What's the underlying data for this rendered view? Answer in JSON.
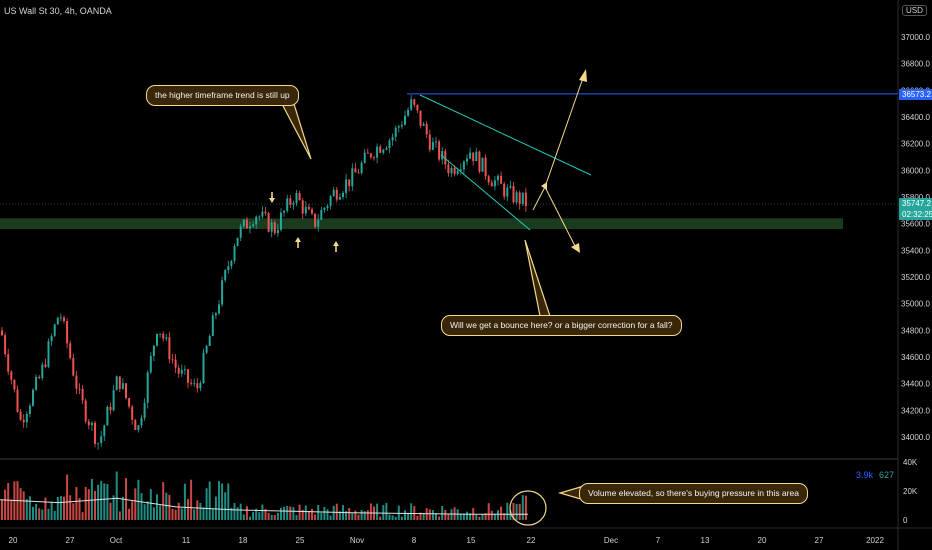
{
  "header": {
    "symbol_line": "US Wall St 30, 4h, OANDA",
    "currency": "USD"
  },
  "price_labels": {
    "resistance": "36573.2",
    "current": "35747.2",
    "countdown": "02:32:25"
  },
  "volume_legend": {
    "value_a": "3.9k",
    "value_b": "627"
  },
  "annotations": {
    "trend_note": "the higher timeframe trend is still up",
    "question_note": "Will we get a bounce here? or a bigger correction for a fall?",
    "volume_note": "Volume elevated, so there's buying pressure in this area"
  },
  "colors": {
    "background": "#000000",
    "bull": "#26a69a",
    "bear": "#ef5350",
    "resistance_line": "#2962ff",
    "channel": "#26c6b5",
    "support_zone": "#1b3b1f",
    "arrows": "#f5d98a",
    "grid_text": "#d1d4dc"
  },
  "chart_data": {
    "type": "candlestick",
    "y_axis": {
      "ylim": [
        33850,
        37220
      ],
      "tick_labels": [
        "37000.0",
        "36800.0",
        "36600.0",
        "36400.0",
        "36200.0",
        "36000.0",
        "35800.0",
        "35600.0",
        "35400.0",
        "35200.0",
        "35000.0",
        "34800.0",
        "34600.0",
        "34400.0",
        "34200.0",
        "34000.0"
      ],
      "tick_values": [
        37000,
        36800,
        36600,
        36400,
        36200,
        36000,
        35800,
        35600,
        35400,
        35200,
        35000,
        34800,
        34600,
        34400,
        34200,
        34000
      ]
    },
    "x_axis": {
      "tick_labels": [
        "20",
        "27",
        "Oct",
        "11",
        "18",
        "25",
        "Nov",
        "8",
        "15",
        "22",
        "Dec",
        "7",
        "13",
        "20",
        "27",
        "2022"
      ],
      "grid": false
    },
    "volume_axis": {
      "tick_labels": [
        "40K",
        "20K",
        "0"
      ],
      "tick_values": [
        40000,
        20000,
        0
      ]
    },
    "price_path": [
      {
        "x": "20",
        "y": 34800
      },
      {
        "x": "22",
        "y": 34120
      },
      {
        "x": "24",
        "y": 34450
      },
      {
        "x": "27",
        "y": 34950
      },
      {
        "x": "29",
        "y": 34300
      },
      {
        "x": "Oct",
        "y": 33950
      },
      {
        "x": "4",
        "y": 34450
      },
      {
        "x": "6",
        "y": 34050
      },
      {
        "x": "8",
        "y": 34850
      },
      {
        "x": "11",
        "y": 34500
      },
      {
        "x": "13",
        "y": 34350
      },
      {
        "x": "15",
        "y": 34950
      },
      {
        "x": "18",
        "y": 35500
      },
      {
        "x": "20",
        "y": 35680
      },
      {
        "x": "22",
        "y": 35560
      },
      {
        "x": "25",
        "y": 35820
      },
      {
        "x": "27",
        "y": 35600
      },
      {
        "x": "29",
        "y": 35830
      },
      {
        "x": "Nov",
        "y": 35950
      },
      {
        "x": "3",
        "y": 36150
      },
      {
        "x": "5",
        "y": 36250
      },
      {
        "x": "8",
        "y": 36500
      },
      {
        "x": "10",
        "y": 36200
      },
      {
        "x": "12",
        "y": 36000
      },
      {
        "x": "15",
        "y": 36150
      },
      {
        "x": "17",
        "y": 35950
      },
      {
        "x": "19",
        "y": 35820
      },
      {
        "x": "22",
        "y": 35747
      }
    ],
    "volume_path": [
      {
        "x": "20",
        "y": 14000
      },
      {
        "x": "27",
        "y": 12000
      },
      {
        "x": "Oct",
        "y": 15000
      },
      {
        "x": "11",
        "y": 9000
      },
      {
        "x": "18",
        "y": 7000
      },
      {
        "x": "25",
        "y": 6000
      },
      {
        "x": "Nov",
        "y": 5000
      },
      {
        "x": "8",
        "y": 4500
      },
      {
        "x": "15",
        "y": 4000
      },
      {
        "x": "22",
        "y": 3900
      }
    ],
    "resistance_level": 36573.2,
    "current_price": 35747.2,
    "support_zone": [
      35560,
      35640
    ],
    "legend": "none",
    "grid": false
  }
}
